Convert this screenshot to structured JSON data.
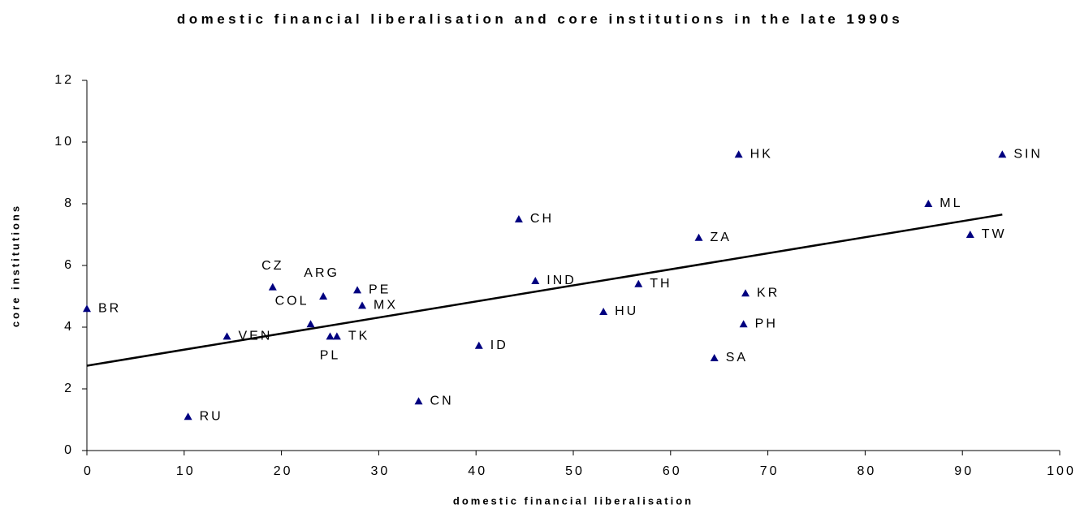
{
  "chart_data": {
    "type": "scatter",
    "title": "domestic financial liberalisation and core institutions in the late 1990s",
    "xlabel": "domestic financial liberalisation",
    "ylabel": "core institutions",
    "point_labels": [
      "BR",
      "RU",
      "VEN",
      "CZ",
      "COL",
      "ARG",
      "PL",
      "TK",
      "PE",
      "MX",
      "CN",
      "ID",
      "CH",
      "IND",
      "HU",
      "TH",
      "ZA",
      "SA",
      "HK",
      "PH",
      "KR",
      "ML",
      "TW",
      "SIN"
    ],
    "x": [
      0,
      10.4,
      14.4,
      19.1,
      23.0,
      24.3,
      25.0,
      25.7,
      27.8,
      28.3,
      34.1,
      40.3,
      44.4,
      46.1,
      53.1,
      56.7,
      62.9,
      64.5,
      67.0,
      67.5,
      67.7,
      86.5,
      90.8,
      94.1
    ],
    "values": [
      4.6,
      1.1,
      3.7,
      5.3,
      4.1,
      5.0,
      3.7,
      3.7,
      5.2,
      4.7,
      1.6,
      3.4,
      7.5,
      5.5,
      4.5,
      5.4,
      6.9,
      3.0,
      9.6,
      4.1,
      5.1,
      8.0,
      7.0,
      9.6
    ],
    "color": "#000080",
    "trendline": {
      "x": [
        0,
        94.1
      ],
      "y": [
        2.75,
        7.65
      ],
      "color": "#000000"
    },
    "xlim": [
      0,
      100
    ],
    "xticks": [
      0,
      10,
      20,
      30,
      40,
      50,
      60,
      70,
      80,
      90,
      100
    ],
    "ylim": [
      0,
      12
    ],
    "yticks": [
      0,
      2,
      4,
      6,
      8,
      10,
      12
    ],
    "grid": false
  }
}
